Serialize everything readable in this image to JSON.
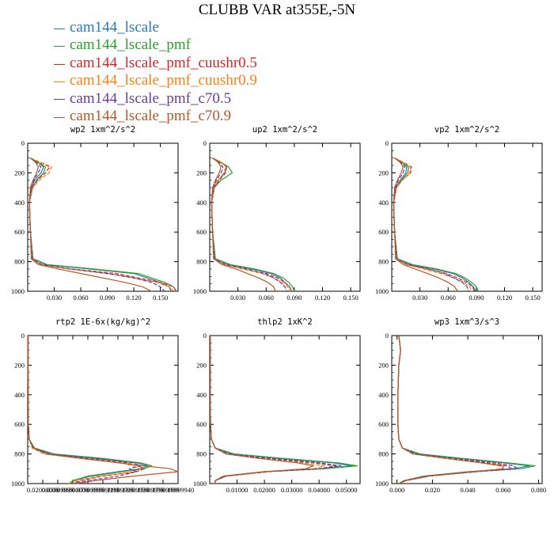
{
  "figure": {
    "title": "CLUBB VAR at355E,-5N"
  },
  "legend": [
    {
      "label": "cam144_lscale",
      "color": "#2a7ab8"
    },
    {
      "label": "cam144_lscale_pmf",
      "color": "#2ca02c"
    },
    {
      "label": "cam144_lscale_pmf_cuushr0.5",
      "color": "#d62728"
    },
    {
      "label": "cam144_lscale_pmf_cuushr0.9",
      "color": "#ff7f0e"
    },
    {
      "label": "cam144_lscale_pmf_c70.5",
      "color": "#6a3d9a"
    },
    {
      "label": "cam144_lscale_pmf_c70.9",
      "color": "#b5582b"
    }
  ],
  "chart_data": [
    {
      "type": "line",
      "title": "wp2   1xm^2/s^2",
      "xlim": [
        0,
        0.17
      ],
      "ylim": [
        1000,
        0
      ],
      "x_ticks": [
        0.03,
        0.06,
        0.09,
        0.12,
        0.15
      ],
      "x_tick_labels": [
        "0.030",
        "0.060",
        "0.090",
        "0.120",
        "0.150"
      ],
      "y_ticks": [
        0,
        200,
        400,
        600,
        800,
        1000
      ],
      "y_tick_labels": [
        "0",
        "200",
        "400",
        "600",
        "800",
        "1000"
      ],
      "y": [
        100,
        130,
        160,
        200,
        250,
        300,
        400,
        600,
        780,
        820,
        850,
        880,
        910,
        940,
        970,
        1000
      ],
      "series": [
        {
          "name": "cam144_lscale",
          "x": [
            0.003,
            0.012,
            0.018,
            0.015,
            0.008,
            0.004,
            0.002,
            0.003,
            0.006,
            0.02,
            0.07,
            0.12,
            0.135,
            0.15,
            0.16,
            0.162
          ]
        },
        {
          "name": "cam144_lscale_pmf",
          "x": [
            0.003,
            0.012,
            0.02,
            0.018,
            0.01,
            0.005,
            0.002,
            0.003,
            0.006,
            0.022,
            0.075,
            0.125,
            0.14,
            0.155,
            0.165,
            0.168
          ]
        },
        {
          "name": "cam144_lscale_pmf_cuushr0.5",
          "x": [
            0.003,
            0.014,
            0.025,
            0.02,
            0.011,
            0.005,
            0.002,
            0.003,
            0.005,
            0.015,
            0.05,
            0.1,
            0.125,
            0.15,
            0.165,
            0.168
          ]
        },
        {
          "name": "cam144_lscale_pmf_cuushr0.9",
          "x": [
            0.003,
            0.015,
            0.027,
            0.024,
            0.013,
            0.006,
            0.002,
            0.003,
            0.005,
            0.014,
            0.045,
            0.09,
            0.12,
            0.145,
            0.16,
            0.165
          ]
        },
        {
          "name": "cam144_lscale_pmf_c70.5",
          "x": [
            0.003,
            0.01,
            0.015,
            0.012,
            0.007,
            0.004,
            0.002,
            0.003,
            0.005,
            0.016,
            0.05,
            0.09,
            0.12,
            0.14,
            0.15,
            0.155
          ]
        },
        {
          "name": "cam144_lscale_pmf_c70.9",
          "x": [
            0.003,
            0.009,
            0.012,
            0.01,
            0.006,
            0.003,
            0.002,
            0.003,
            0.004,
            0.012,
            0.035,
            0.06,
            0.085,
            0.11,
            0.13,
            0.14
          ]
        }
      ]
    },
    {
      "type": "line",
      "title": "up2   1xm^2/s^2",
      "xlim": [
        0,
        0.16
      ],
      "ylim": [
        1000,
        0
      ],
      "x_ticks": [
        0.03,
        0.06,
        0.09,
        0.12,
        0.15
      ],
      "x_tick_labels": [
        "0.030",
        "0.060",
        "0.090",
        "0.120",
        "0.150"
      ],
      "y_ticks": [
        0,
        200,
        400,
        600,
        800,
        1000
      ],
      "y_tick_labels": [
        "0",
        "200",
        "400",
        "600",
        "800",
        "1000"
      ],
      "y": [
        100,
        130,
        160,
        200,
        250,
        300,
        400,
        600,
        780,
        820,
        850,
        880,
        910,
        940,
        970,
        1000
      ],
      "series": [
        {
          "name": "cam144_lscale",
          "x": [
            0.003,
            0.012,
            0.018,
            0.016,
            0.009,
            0.004,
            0.002,
            0.003,
            0.006,
            0.02,
            0.045,
            0.065,
            0.075,
            0.08,
            0.085,
            0.087
          ]
        },
        {
          "name": "cam144_lscale_pmf",
          "x": [
            0.003,
            0.012,
            0.02,
            0.024,
            0.012,
            0.005,
            0.002,
            0.003,
            0.006,
            0.022,
            0.048,
            0.068,
            0.078,
            0.084,
            0.088,
            0.09
          ]
        },
        {
          "name": "cam144_lscale_pmf_cuushr0.5",
          "x": [
            0.003,
            0.013,
            0.018,
            0.017,
            0.01,
            0.005,
            0.002,
            0.003,
            0.005,
            0.016,
            0.038,
            0.06,
            0.072,
            0.08,
            0.085,
            0.087
          ]
        },
        {
          "name": "cam144_lscale_pmf_cuushr0.9",
          "x": [
            0.003,
            0.013,
            0.017,
            0.015,
            0.009,
            0.005,
            0.002,
            0.003,
            0.005,
            0.015,
            0.035,
            0.055,
            0.068,
            0.077,
            0.083,
            0.085
          ]
        },
        {
          "name": "cam144_lscale_pmf_c70.5",
          "x": [
            0.003,
            0.01,
            0.014,
            0.012,
            0.007,
            0.004,
            0.002,
            0.003,
            0.005,
            0.017,
            0.04,
            0.058,
            0.068,
            0.075,
            0.08,
            0.082
          ]
        },
        {
          "name": "cam144_lscale_pmf_c70.9",
          "x": [
            0.003,
            0.009,
            0.012,
            0.01,
            0.006,
            0.003,
            0.002,
            0.003,
            0.004,
            0.013,
            0.028,
            0.04,
            0.052,
            0.062,
            0.068,
            0.07
          ]
        }
      ]
    },
    {
      "type": "line",
      "title": "vp2   1xm^2/s^2",
      "xlim": [
        0,
        0.16
      ],
      "ylim": [
        1000,
        0
      ],
      "x_ticks": [
        0.03,
        0.06,
        0.09,
        0.12,
        0.15
      ],
      "x_tick_labels": [
        "0.030",
        "0.060",
        "0.090",
        "0.120",
        "0.150"
      ],
      "y_ticks": [
        0,
        200,
        400,
        600,
        800,
        1000
      ],
      "y_tick_labels": [
        "0",
        "200",
        "400",
        "600",
        "800",
        "1000"
      ],
      "y": [
        100,
        130,
        160,
        200,
        250,
        300,
        400,
        600,
        780,
        820,
        850,
        880,
        910,
        940,
        970,
        1000
      ],
      "series": [
        {
          "name": "cam144_lscale",
          "x": [
            0.003,
            0.011,
            0.016,
            0.015,
            0.009,
            0.004,
            0.002,
            0.003,
            0.006,
            0.02,
            0.045,
            0.065,
            0.075,
            0.082,
            0.087,
            0.089
          ]
        },
        {
          "name": "cam144_lscale_pmf",
          "x": [
            0.003,
            0.011,
            0.018,
            0.017,
            0.01,
            0.005,
            0.002,
            0.003,
            0.006,
            0.022,
            0.048,
            0.068,
            0.078,
            0.085,
            0.09,
            0.092
          ]
        },
        {
          "name": "cam144_lscale_pmf_cuushr0.5",
          "x": [
            0.003,
            0.013,
            0.021,
            0.02,
            0.011,
            0.005,
            0.002,
            0.003,
            0.005,
            0.016,
            0.038,
            0.058,
            0.07,
            0.08,
            0.086,
            0.088
          ]
        },
        {
          "name": "cam144_lscale_pmf_cuushr0.9",
          "x": [
            0.003,
            0.013,
            0.02,
            0.019,
            0.011,
            0.005,
            0.002,
            0.003,
            0.005,
            0.015,
            0.034,
            0.052,
            0.066,
            0.077,
            0.083,
            0.085
          ]
        },
        {
          "name": "cam144_lscale_pmf_c70.5",
          "x": [
            0.003,
            0.01,
            0.014,
            0.012,
            0.007,
            0.004,
            0.002,
            0.003,
            0.005,
            0.017,
            0.04,
            0.056,
            0.066,
            0.075,
            0.08,
            0.082
          ]
        },
        {
          "name": "cam144_lscale_pmf_c70.9",
          "x": [
            0.003,
            0.009,
            0.012,
            0.01,
            0.006,
            0.003,
            0.002,
            0.003,
            0.004,
            0.012,
            0.025,
            0.038,
            0.05,
            0.06,
            0.067,
            0.07
          ]
        }
      ]
    },
    {
      "type": "line",
      "title": "rtp2   1E-6x(kg/kg)^2",
      "xlim": [
        0,
        0.2
      ],
      "ylim": [
        1000,
        0
      ],
      "x_ticks": [
        0.02,
        0.04,
        0.06,
        0.08,
        0.1,
        0.12,
        0.14,
        0.16,
        0.18,
        0.2
      ],
      "x_tick_labels": [
        "0.02000000",
        "0.03999999",
        "0.06000000",
        "0.07999999",
        "0.09999999",
        "0.11999999",
        "0.13999999",
        "0.15999999",
        "0.17999999",
        "0.19999940"
      ],
      "y_ticks": [
        0,
        200,
        400,
        600,
        800,
        1000
      ],
      "y_tick_labels": [
        "0",
        "200",
        "400",
        "600",
        "800",
        "1000"
      ],
      "y": [
        0,
        200,
        400,
        600,
        700,
        760,
        800,
        830,
        860,
        880,
        900,
        920,
        950,
        980,
        1000
      ],
      "series": [
        {
          "name": "cam144_lscale",
          "x": [
            0.0005,
            0.0005,
            0.0006,
            0.0008,
            0.002,
            0.008,
            0.03,
            0.09,
            0.145,
            0.16,
            0.15,
            0.12,
            0.08,
            0.06,
            0.055
          ]
        },
        {
          "name": "cam144_lscale_pmf",
          "x": [
            0.0005,
            0.0005,
            0.0006,
            0.0008,
            0.002,
            0.009,
            0.035,
            0.1,
            0.15,
            0.165,
            0.155,
            0.125,
            0.085,
            0.06,
            0.055
          ]
        },
        {
          "name": "cam144_lscale_pmf_cuushr0.5",
          "x": [
            0.0005,
            0.0005,
            0.0006,
            0.0008,
            0.002,
            0.007,
            0.025,
            0.075,
            0.13,
            0.148,
            0.155,
            0.145,
            0.1,
            0.07,
            0.06
          ]
        },
        {
          "name": "cam144_lscale_pmf_cuushr0.9",
          "x": [
            0.0005,
            0.0005,
            0.0006,
            0.0008,
            0.002,
            0.006,
            0.022,
            0.07,
            0.125,
            0.14,
            0.15,
            0.14,
            0.095,
            0.065,
            0.055
          ]
        },
        {
          "name": "cam144_lscale_pmf_c70.5",
          "x": [
            0.0005,
            0.0005,
            0.0006,
            0.0008,
            0.002,
            0.008,
            0.03,
            0.085,
            0.14,
            0.15,
            0.135,
            0.145,
            0.12,
            0.08,
            0.06
          ]
        },
        {
          "name": "cam144_lscale_pmf_c70.9",
          "x": [
            0.0005,
            0.0005,
            0.0006,
            0.0008,
            0.002,
            0.007,
            0.025,
            0.07,
            0.12,
            0.155,
            0.19,
            0.2,
            0.14,
            0.09,
            0.065
          ]
        }
      ]
    },
    {
      "type": "line",
      "title": "thlp2   1xK^2",
      "xlim": [
        0,
        0.055
      ],
      "ylim": [
        1000,
        0
      ],
      "x_ticks": [
        0.01,
        0.02,
        0.03,
        0.04,
        0.05
      ],
      "x_tick_labels": [
        "0.01000",
        "0.02000",
        "0.03000",
        "0.04000",
        "0.05000"
      ],
      "y_ticks": [
        0,
        200,
        400,
        600,
        800,
        1000
      ],
      "y_tick_labels": [
        "0",
        "200",
        "400",
        "600",
        "800",
        "1000"
      ],
      "y": [
        0,
        200,
        400,
        600,
        700,
        760,
        800,
        830,
        860,
        880,
        900,
        920,
        950,
        980,
        1000
      ],
      "series": [
        {
          "name": "cam144_lscale",
          "x": [
            0.0002,
            0.0002,
            0.0002,
            0.0003,
            0.0006,
            0.002,
            0.008,
            0.025,
            0.045,
            0.052,
            0.04,
            0.02,
            0.005,
            0.002,
            0.002
          ]
        },
        {
          "name": "cam144_lscale_pmf",
          "x": [
            0.0002,
            0.0002,
            0.0002,
            0.0003,
            0.0006,
            0.002,
            0.009,
            0.027,
            0.047,
            0.054,
            0.042,
            0.02,
            0.005,
            0.002,
            0.002
          ]
        },
        {
          "name": "cam144_lscale_pmf_cuushr0.5",
          "x": [
            0.0002,
            0.0002,
            0.0002,
            0.0003,
            0.0006,
            0.002,
            0.007,
            0.02,
            0.038,
            0.046,
            0.04,
            0.022,
            0.006,
            0.002,
            0.002
          ]
        },
        {
          "name": "cam144_lscale_pmf_cuushr0.9",
          "x": [
            0.0002,
            0.0002,
            0.0002,
            0.0003,
            0.0006,
            0.002,
            0.006,
            0.018,
            0.034,
            0.042,
            0.038,
            0.021,
            0.006,
            0.002,
            0.002
          ]
        },
        {
          "name": "cam144_lscale_pmf_c70.5",
          "x": [
            0.0002,
            0.0002,
            0.0002,
            0.0003,
            0.0006,
            0.002,
            0.007,
            0.022,
            0.04,
            0.048,
            0.04,
            0.02,
            0.005,
            0.002,
            0.002
          ]
        },
        {
          "name": "cam144_lscale_pmf_c70.9",
          "x": [
            0.0002,
            0.0002,
            0.0002,
            0.0003,
            0.0006,
            0.002,
            0.006,
            0.018,
            0.032,
            0.038,
            0.035,
            0.02,
            0.006,
            0.002,
            0.002
          ]
        }
      ]
    },
    {
      "type": "line",
      "title": "wp3   1xm^3/s^3",
      "xlim": [
        -0.003,
        0.082
      ],
      "ylim": [
        1000,
        0
      ],
      "x_ticks": [
        0,
        0.02,
        0.04,
        0.06,
        0.08
      ],
      "x_tick_labels": [
        "0.000",
        "0.020",
        "0.040",
        "0.060",
        "0.080"
      ],
      "y_ticks": [
        0,
        200,
        400,
        600,
        800,
        1000
      ],
      "y_tick_labels": [
        "0",
        "200",
        "400",
        "600",
        "800",
        "1000"
      ],
      "y": [
        0,
        100,
        200,
        400,
        600,
        700,
        760,
        800,
        830,
        860,
        880,
        900,
        920,
        950,
        980,
        1000
      ],
      "series": [
        {
          "name": "cam144_lscale",
          "x": [
            0.001,
            0.002,
            0.001,
            0.0005,
            0.0005,
            0.001,
            0.003,
            0.012,
            0.035,
            0.06,
            0.075,
            0.065,
            0.04,
            0.015,
            0.004,
            0.001
          ]
        },
        {
          "name": "cam144_lscale_pmf",
          "x": [
            0.001,
            0.002,
            0.001,
            0.0005,
            0.0005,
            0.001,
            0.003,
            0.013,
            0.037,
            0.063,
            0.078,
            0.07,
            0.042,
            0.016,
            0.004,
            0.001
          ]
        },
        {
          "name": "cam144_lscale_pmf_cuushr0.5",
          "x": [
            0.001,
            0.002,
            0.001,
            0.0005,
            0.0005,
            0.001,
            0.003,
            0.01,
            0.03,
            0.05,
            0.062,
            0.065,
            0.045,
            0.018,
            0.005,
            0.001
          ]
        },
        {
          "name": "cam144_lscale_pmf_cuushr0.9",
          "x": [
            0.001,
            0.002,
            0.001,
            0.0005,
            0.0005,
            0.001,
            0.003,
            0.009,
            0.027,
            0.047,
            0.058,
            0.06,
            0.043,
            0.018,
            0.005,
            0.001
          ]
        },
        {
          "name": "cam144_lscale_pmf_c70.5",
          "x": [
            0.001,
            0.002,
            0.001,
            0.0005,
            0.0005,
            0.001,
            0.003,
            0.011,
            0.032,
            0.055,
            0.066,
            0.068,
            0.045,
            0.017,
            0.004,
            0.001
          ]
        },
        {
          "name": "cam144_lscale_pmf_c70.9",
          "x": [
            0.001,
            0.002,
            0.001,
            0.0005,
            0.0005,
            0.001,
            0.003,
            0.009,
            0.028,
            0.048,
            0.06,
            0.06,
            0.044,
            0.018,
            0.005,
            0.001
          ]
        }
      ]
    }
  ]
}
